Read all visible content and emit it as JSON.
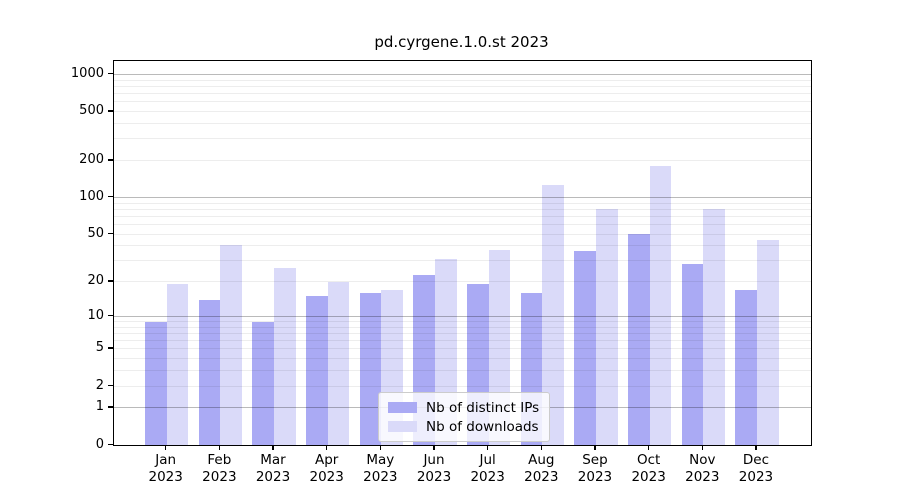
{
  "chart_data": {
    "type": "bar",
    "title": "pd.cyrgene.1.0.st 2023",
    "year_label": "2023",
    "categories": [
      "Jan",
      "Feb",
      "Mar",
      "Apr",
      "May",
      "Jun",
      "Jul",
      "Aug",
      "Sep",
      "Oct",
      "Nov",
      "Dec"
    ],
    "series": [
      {
        "name": "Nb of distinct IPs",
        "color": "#aaaaf4",
        "values": [
          9,
          14,
          9,
          15,
          16,
          23,
          19,
          16,
          36,
          50,
          28,
          17
        ]
      },
      {
        "name": "Nb of downloads",
        "color": "#dadaf9",
        "values": [
          19,
          41,
          26,
          20,
          17,
          31,
          37,
          127,
          80,
          180,
          81,
          45
        ]
      }
    ],
    "y_ticks": [
      0,
      1,
      2,
      5,
      10,
      20,
      50,
      100,
      200,
      500,
      1000
    ],
    "major_gridline_values": [
      1,
      10,
      100,
      1000
    ],
    "ylim": [
      0,
      1000
    ],
    "scale": "log10(1+x)",
    "grid": "on",
    "legend_position": "bottom-center",
    "xlabel": "",
    "ylabel": "",
    "colors": {
      "axis": "#000000",
      "major_grid": "#b0b0b0",
      "minor_grid": "#ededed",
      "background": "#ffffff"
    }
  }
}
